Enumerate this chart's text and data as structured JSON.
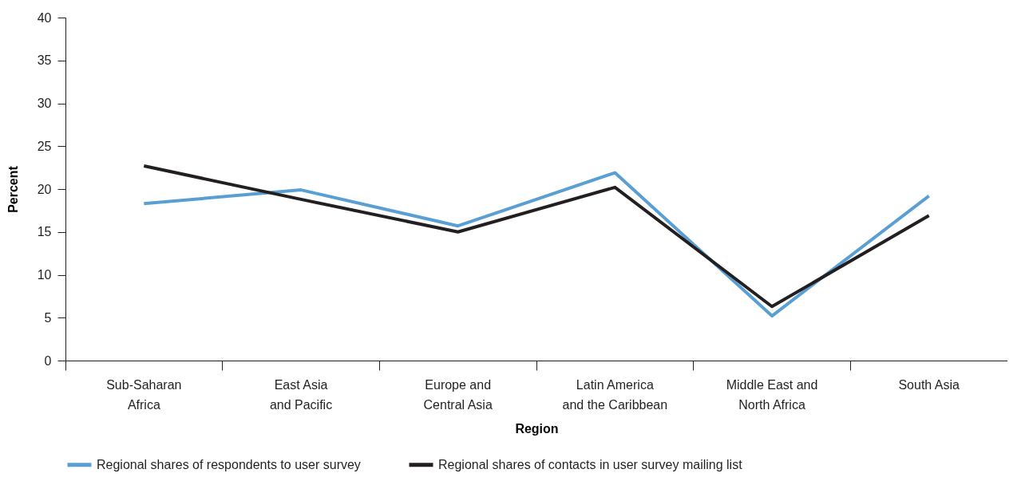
{
  "chart_data": {
    "type": "line",
    "xlabel": "Region",
    "ylabel": "Percent",
    "categories": [
      "Sub-Saharan Africa",
      "East Asia and Pacific",
      "Europe and Central Asia",
      "Latin America and the Caribbean",
      "Middle East and North Africa",
      "South Asia"
    ],
    "series": [
      {
        "name": "Regional shares of respondents to user survey",
        "color": "#5a9fd4",
        "values": [
          18.3,
          19.9,
          15.7,
          21.9,
          5.2,
          19.2
        ]
      },
      {
        "name": "Regional shares of contacts in user survey mailing list",
        "color": "#231f20",
        "values": [
          22.7,
          18.8,
          15.0,
          20.2,
          6.3,
          16.9
        ]
      }
    ],
    "ylim": [
      0,
      40
    ],
    "yticks": [
      0,
      5,
      10,
      15,
      20,
      25,
      30,
      35,
      40
    ],
    "grid": false,
    "legend": "bottom",
    "marker": "none",
    "line_style": "solid"
  }
}
